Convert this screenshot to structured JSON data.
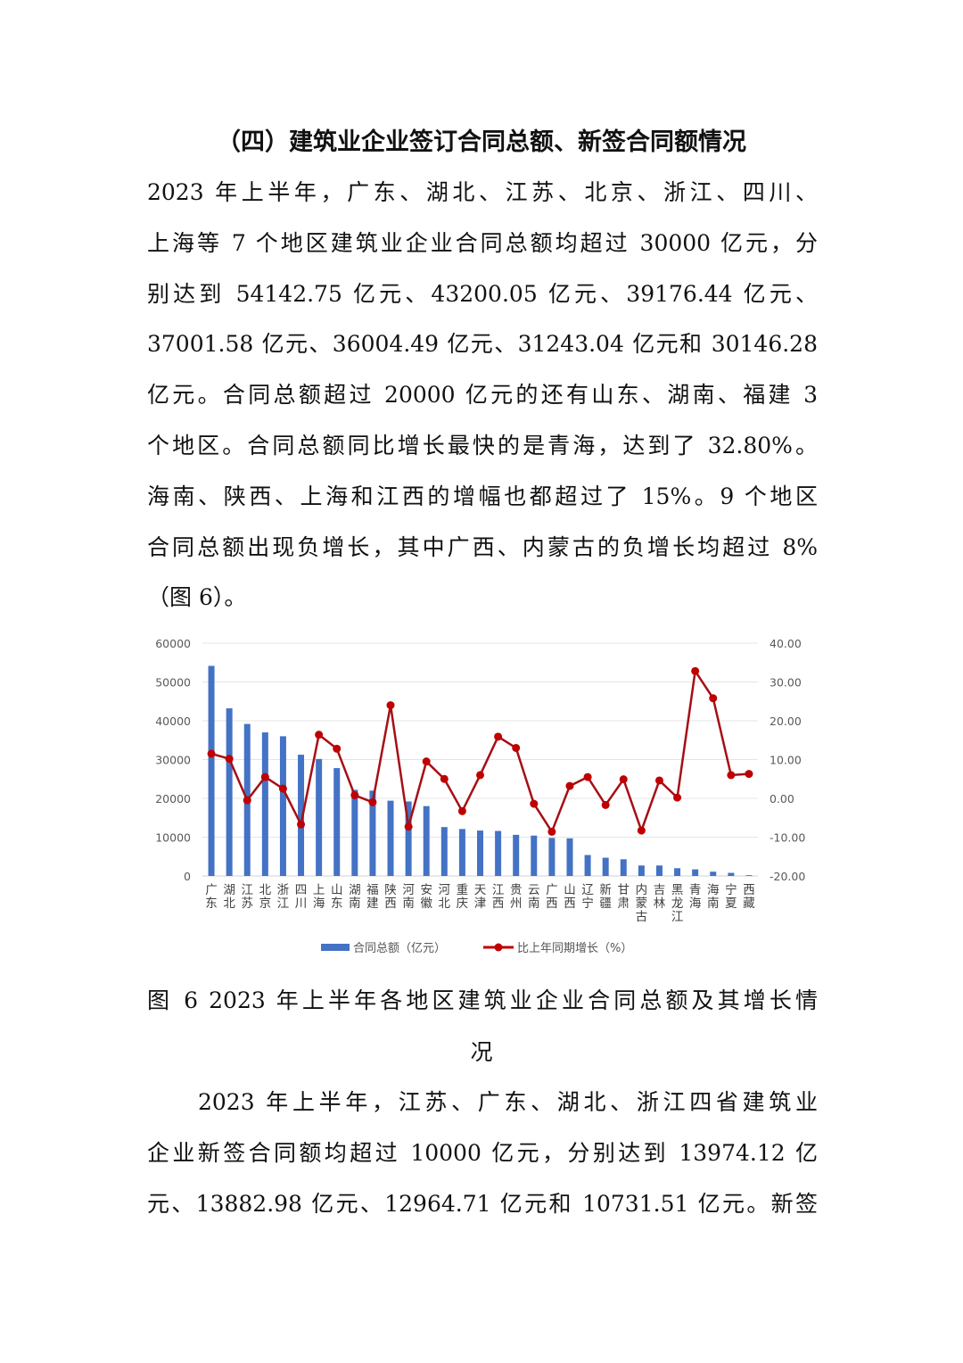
{
  "section_title": "（四）建筑业企业签订合同总额、新签合同额情况",
  "paragraph1_lines": [
    "2023 年上半年，广东、湖北、江苏、北京、浙江、四川、",
    "上海等 7 个地区建筑业企业合同总额均超过 30000 亿元，分",
    "别达到 54142.75 亿元、43200.05 亿元、39176.44 亿元、",
    "37001.58 亿元、36004.49 亿元、31243.04 亿元和 30146.28",
    "亿元。合同总额超过 20000 亿元的还有山东、湖南、福建 3",
    "个地区。合同总额同比增长最快的是青海，达到了 32.80%。",
    "海南、陕西、上海和江西的增幅也都超过了 15%。9 个地区",
    "合同总额出现负增长，其中广西、内蒙古的负增长均超过 8%",
    "（图 6）。"
  ],
  "figure_caption_lines": [
    "图 6 2023 年上半年各地区建筑业企业合同总额及其增长情",
    "况"
  ],
  "paragraph2_lines": [
    "2023 年上半年，江苏、广东、湖北、浙江四省建筑业",
    "企业新签合同额均超过 10000 亿元，分别达到 13974.12 亿",
    "元、13882.98 亿元、12964.71 亿元和 10731.51 亿元。新签"
  ],
  "chart_data": {
    "type": "bar+line",
    "categories": [
      "广东",
      "湖北",
      "江苏",
      "北京",
      "浙江",
      "四川",
      "上海",
      "山东",
      "湖南",
      "福建",
      "陕西",
      "河南",
      "安徽",
      "河北",
      "重庆",
      "天津",
      "江西",
      "贵州",
      "云南",
      "广西",
      "山西",
      "辽宁",
      "新疆",
      "甘肃",
      "内蒙古",
      "吉林",
      "黑龙江",
      "青海",
      "海南",
      "宁夏",
      "西藏"
    ],
    "series": [
      {
        "name": "合同总额（亿元）",
        "type": "bar",
        "axis": "left",
        "color": "#4472C4",
        "values": [
          54142.75,
          43200.05,
          39176.44,
          37001.58,
          36004.49,
          31243.04,
          30146.28,
          27800,
          22200,
          22000,
          19400,
          19200,
          18000,
          12600,
          12100,
          11700,
          11600,
          10600,
          10400,
          9800,
          9700,
          5400,
          4700,
          4300,
          2700,
          2700,
          2000,
          1700,
          1100,
          800,
          200
        ]
      },
      {
        "name": "比上年同期增长（%）",
        "type": "line",
        "axis": "right",
        "color": "#C00000",
        "values": [
          11.5,
          10.2,
          -0.5,
          5.5,
          2.5,
          -6.7,
          16.4,
          12.8,
          0.8,
          -1.0,
          24.0,
          -7.3,
          9.5,
          5.0,
          -3.3,
          6.0,
          15.9,
          13.0,
          -1.4,
          -8.6,
          3.2,
          5.5,
          -1.7,
          4.9,
          -8.3,
          4.6,
          0.2,
          32.8,
          25.8,
          6.0,
          6.3
        ]
      }
    ],
    "y_left": {
      "ylim": [
        0,
        60000
      ],
      "ticks": [
        "0",
        "10000",
        "20000",
        "30000",
        "40000",
        "50000",
        "60000"
      ]
    },
    "y_right": {
      "ylim": [
        -20,
        40
      ],
      "ticks": [
        "-20.00",
        "-10.00",
        "0.00",
        "10.00",
        "20.00",
        "30.00",
        "40.00"
      ]
    },
    "grid": true,
    "legend": "bottom"
  }
}
